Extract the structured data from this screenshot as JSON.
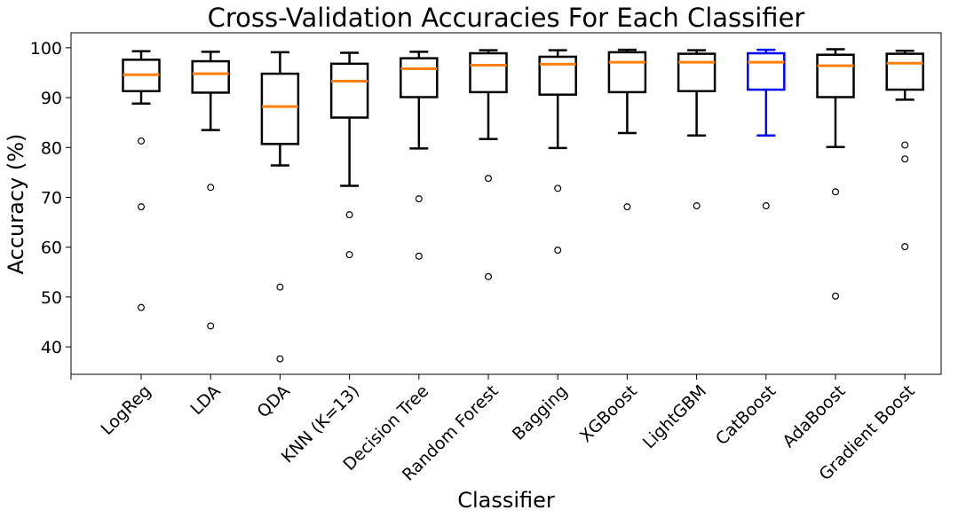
{
  "chart_data": {
    "type": "box",
    "title": "Cross-Validation Accuracies For Each Classifier",
    "xlabel": "Classifier",
    "ylabel": "Accuracy (%)",
    "ylim": [
      34.5,
      103
    ],
    "yticks": [
      40,
      50,
      60,
      70,
      80,
      90,
      100
    ],
    "grid": false,
    "default_box_color": "#000000",
    "median_color": "#ff7f0e",
    "highlight_color": "#0000ff",
    "series": [
      {
        "name": "LogReg",
        "whisker_low": 88.8,
        "q1": 91.3,
        "median": 94.6,
        "q3": 97.6,
        "whisker_high": 99.3,
        "outliers": [
          81.3,
          68.1,
          47.9
        ],
        "color": "#000000"
      },
      {
        "name": "LDA",
        "whisker_low": 83.5,
        "q1": 91.0,
        "median": 94.8,
        "q3": 97.3,
        "whisker_high": 99.2,
        "outliers": [
          72.0,
          44.2
        ],
        "color": "#000000"
      },
      {
        "name": "QDA",
        "whisker_low": 76.4,
        "q1": 80.7,
        "median": 88.2,
        "q3": 94.8,
        "whisker_high": 99.1,
        "outliers": [
          52.0,
          37.6
        ],
        "color": "#000000"
      },
      {
        "name": "KNN (K=13)",
        "whisker_low": 72.3,
        "q1": 86.0,
        "median": 93.3,
        "q3": 96.8,
        "whisker_high": 99.0,
        "outliers": [
          66.5,
          58.5
        ],
        "color": "#000000"
      },
      {
        "name": "Decision Tree",
        "whisker_low": 79.8,
        "q1": 90.1,
        "median": 95.8,
        "q3": 97.9,
        "whisker_high": 99.2,
        "outliers": [
          69.7,
          58.2
        ],
        "color": "#000000"
      },
      {
        "name": "Random Forest",
        "whisker_low": 81.7,
        "q1": 91.1,
        "median": 96.5,
        "q3": 98.9,
        "whisker_high": 99.5,
        "outliers": [
          73.8,
          54.1
        ],
        "color": "#000000"
      },
      {
        "name": "Bagging",
        "whisker_low": 79.9,
        "q1": 90.6,
        "median": 96.7,
        "q3": 98.2,
        "whisker_high": 99.5,
        "outliers": [
          71.8,
          59.4
        ],
        "color": "#000000"
      },
      {
        "name": "XGBoost",
        "whisker_low": 82.9,
        "q1": 91.1,
        "median": 97.1,
        "q3": 99.1,
        "whisker_high": 99.6,
        "outliers": [
          68.1
        ],
        "color": "#000000"
      },
      {
        "name": "LightGBM",
        "whisker_low": 82.4,
        "q1": 91.3,
        "median": 97.1,
        "q3": 98.8,
        "whisker_high": 99.5,
        "outliers": [
          68.3
        ],
        "color": "#000000"
      },
      {
        "name": "CatBoost",
        "whisker_low": 82.4,
        "q1": 91.6,
        "median": 97.1,
        "q3": 98.9,
        "whisker_high": 99.6,
        "outliers": [
          68.3
        ],
        "color": "#0000ff"
      },
      {
        "name": "AdaBoost",
        "whisker_low": 80.1,
        "q1": 90.1,
        "median": 96.4,
        "q3": 98.6,
        "whisker_high": 99.7,
        "outliers": [
          71.1,
          50.2
        ],
        "color": "#000000"
      },
      {
        "name": "Gradient Boost",
        "whisker_low": 89.6,
        "q1": 91.6,
        "median": 96.9,
        "q3": 98.8,
        "whisker_high": 99.4,
        "outliers": [
          80.5,
          77.7,
          60.1
        ],
        "color": "#000000"
      }
    ]
  }
}
